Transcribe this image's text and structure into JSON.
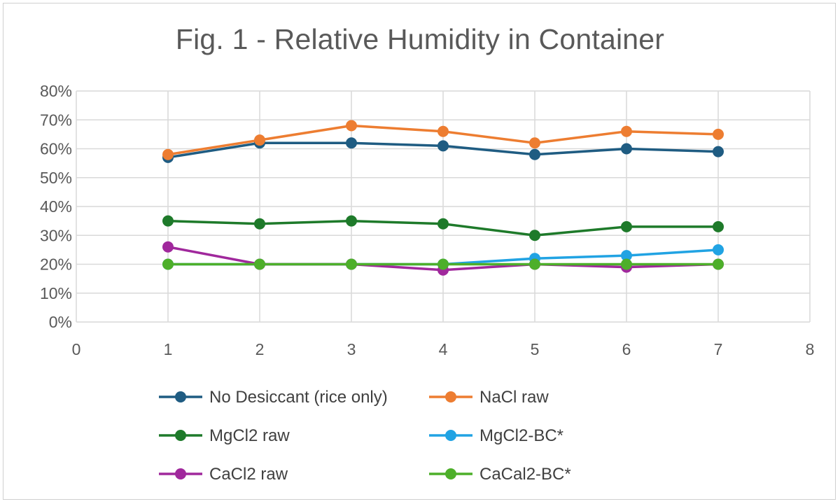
{
  "chart_data": {
    "type": "line",
    "title": "Fig. 1 - Relative Humidity in Container",
    "xlabel": "",
    "ylabel": "",
    "xlim": [
      0,
      8
    ],
    "ylim": [
      0,
      80
    ],
    "x_ticks": [
      "0",
      "1",
      "2",
      "3",
      "4",
      "5",
      "6",
      "7",
      "8"
    ],
    "y_ticks": [
      "0%",
      "10%",
      "20%",
      "30%",
      "40%",
      "50%",
      "60%",
      "70%",
      "80%"
    ],
    "grid": "vertical and horizontal",
    "legend_position": "bottom",
    "x": [
      1,
      2,
      3,
      4,
      5,
      6,
      7
    ],
    "series": [
      {
        "name": "No Desiccant (rice only)",
        "color": "#1f5c82",
        "values": [
          57,
          62,
          62,
          61,
          58,
          60,
          59
        ]
      },
      {
        "name": "NaCl raw",
        "color": "#ed7d31",
        "values": [
          58,
          63,
          68,
          66,
          62,
          66,
          65
        ]
      },
      {
        "name": "MgCl2 raw",
        "color": "#1e7a2a",
        "values": [
          35,
          34,
          35,
          34,
          30,
          33,
          33
        ]
      },
      {
        "name": "MgCl2-BC*",
        "color": "#21a3e3",
        "values": [
          20,
          20,
          20,
          20,
          22,
          23,
          25
        ]
      },
      {
        "name": "CaCl2 raw",
        "color": "#a0289c",
        "values": [
          26,
          20,
          20,
          18,
          20,
          19,
          20
        ]
      },
      {
        "name": "CaCal2-BC*",
        "color": "#4daf2a",
        "values": [
          20,
          20,
          20,
          20,
          20,
          20,
          20
        ]
      }
    ]
  }
}
